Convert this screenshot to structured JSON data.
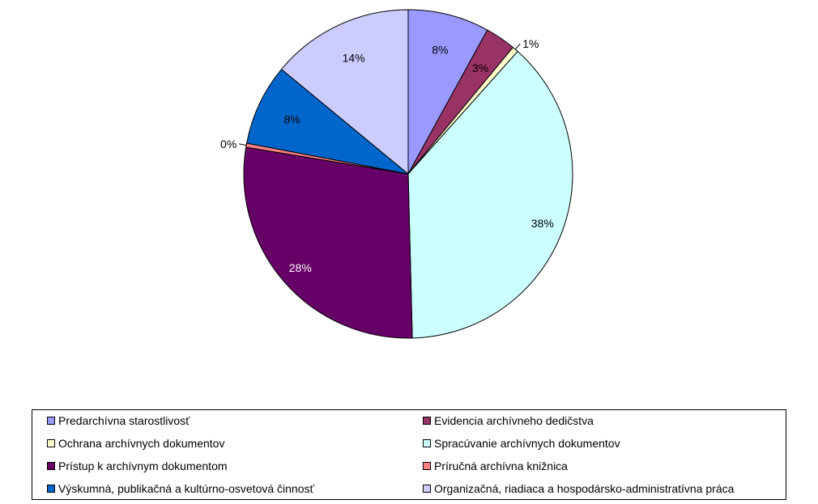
{
  "chart_data": {
    "type": "pie",
    "start_angle": "12 o'clock, clockwise",
    "legend_position": "bottom",
    "slices": [
      {
        "name": "Predarchívna starostlivosť",
        "value": 8,
        "label": "8%",
        "color": "#9999ff"
      },
      {
        "name": "Evidencia archívneho dedičstva",
        "value": 3,
        "label": "3%",
        "color": "#993366"
      },
      {
        "name": "Ochrana archívnych dokumentov",
        "value": 0.6,
        "label": "1%",
        "color": "#ffffcc"
      },
      {
        "name": "Spracúvanie archívnych dokumentov",
        "value": 38,
        "label": "38%",
        "color": "#ccffff"
      },
      {
        "name": "Prístup k archívnym dokumentom",
        "value": 28,
        "label": "28%",
        "color": "#660066"
      },
      {
        "name": "Príručná archívna knižnica",
        "value": 0.4,
        "label": "0%",
        "color": "#ff8080"
      },
      {
        "name": "Výskumná, publikačná a kultúrno-osvetová činnosť",
        "value": 8,
        "label": "8%",
        "color": "#0066cc"
      },
      {
        "name": "Organizačná, riadiaca a hospodársko-administratívna práca",
        "value": 14,
        "label": "14%",
        "color": "#ccccff"
      }
    ]
  }
}
